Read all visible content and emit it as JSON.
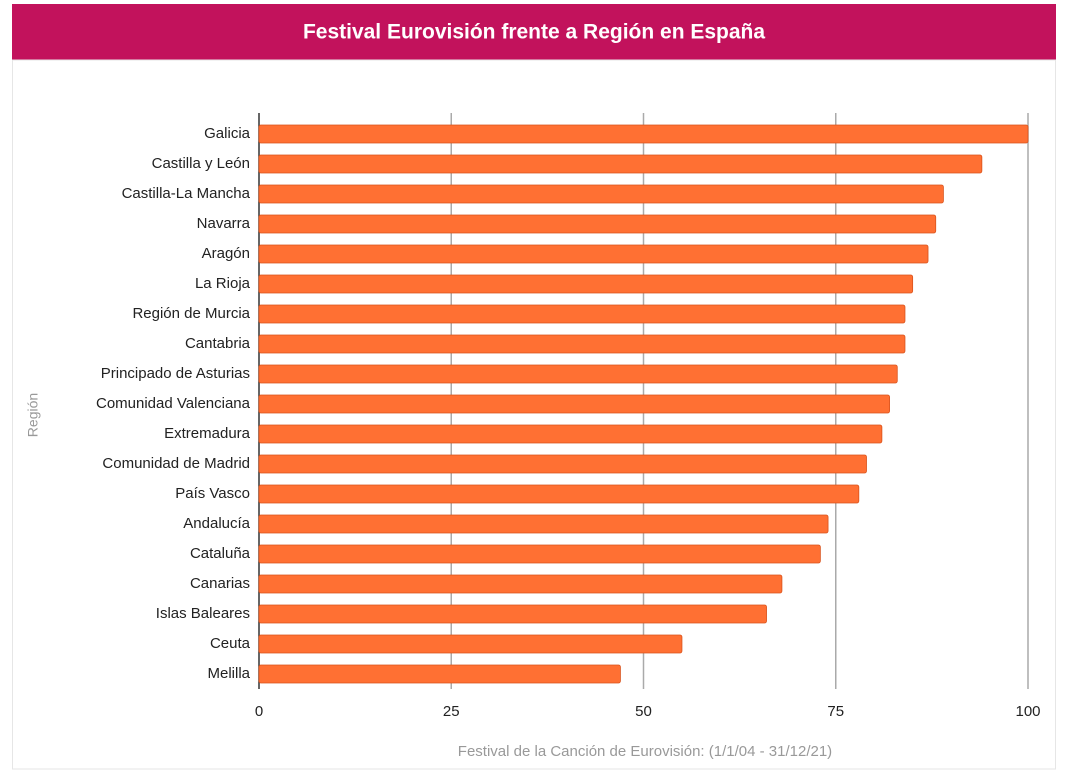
{
  "chart_data": {
    "type": "bar",
    "orientation": "horizontal",
    "title": "Festival Eurovisión frente a Región en España",
    "xlabel": "Festival de la Canción de Eurovisión: (1/1/04 - 31/12/21)",
    "ylabel": "Región",
    "categories": [
      "Galicia",
      "Castilla y León",
      "Castilla-La Mancha",
      "Navarra",
      "Aragón",
      "La Rioja",
      "Región de Murcia",
      "Cantabria",
      "Principado de Asturias",
      "Comunidad Valenciana",
      "Extremadura",
      "Comunidad de Madrid",
      "País Vasco",
      "Andalucía",
      "Cataluña",
      "Canarias",
      "Islas Baleares",
      "Ceuta",
      "Melilla"
    ],
    "values": [
      100,
      94,
      89,
      88,
      87,
      85,
      84,
      84,
      83,
      82,
      81,
      79,
      78,
      74,
      73,
      68,
      66,
      55,
      47
    ],
    "color": "#ff7033",
    "xlim": [
      0,
      100
    ],
    "xticks": [
      0,
      25,
      50,
      75,
      100
    ],
    "grid": true
  }
}
